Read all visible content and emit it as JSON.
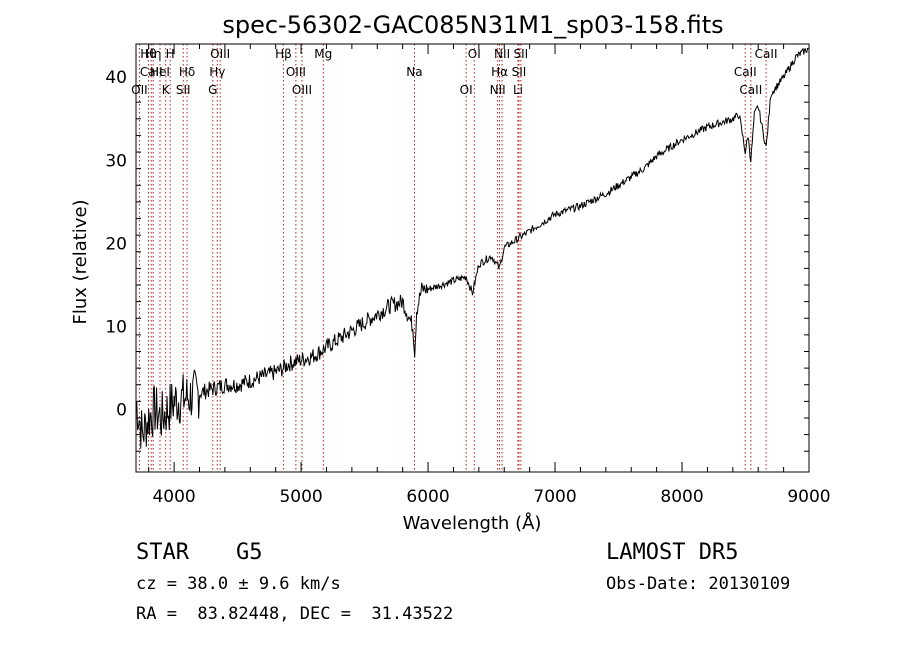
{
  "chart_data": {
    "type": "line",
    "title": "spec-56302-GAC085N31M1_sp03-158.fits",
    "xlabel": "Wavelength (Å)",
    "ylabel": "Flux (relative)",
    "xlim": [
      3700,
      9000
    ],
    "ylim": [
      -7.5,
      44
    ],
    "x_ticks": [
      4000,
      5000,
      6000,
      7000,
      8000,
      9000
    ],
    "y_ticks": [
      0,
      10,
      20,
      30,
      40
    ],
    "grid": false,
    "series": [
      {
        "x": [
          3700,
          3750,
          3800,
          3850,
          3900,
          3950,
          4000,
          4100,
          4200,
          4300,
          4400,
          4500,
          4600,
          4700,
          4800,
          4860,
          4900,
          5000,
          5100,
          5200,
          5300,
          5400,
          5500,
          5600,
          5700,
          5800,
          5880,
          5895,
          5910,
          5950,
          6000,
          6100,
          6200,
          6300,
          6350,
          6400,
          6500,
          6562,
          6600,
          6700,
          6800,
          6900,
          7000,
          7200,
          7400,
          7500,
          7600,
          7700,
          7800,
          8000,
          8200,
          8300,
          8400,
          8450,
          8498,
          8520,
          8542,
          8570,
          8600,
          8662,
          8700,
          8800,
          8900,
          9000
        ],
        "y": [
          1,
          -3,
          -1,
          0,
          -1,
          0,
          1,
          1.5,
          2,
          2.5,
          3,
          3,
          3.5,
          4,
          4.5,
          5,
          5.5,
          6,
          6.5,
          7.5,
          8.5,
          9.5,
          10.5,
          11.5,
          12.5,
          13,
          10,
          7,
          12,
          14.5,
          14.5,
          15,
          15.5,
          16,
          14,
          17.5,
          18.5,
          17,
          19.5,
          20.5,
          21.5,
          22.5,
          23.5,
          24.5,
          26,
          27,
          28,
          29,
          30.5,
          32.5,
          34,
          34.5,
          35,
          35.5,
          31,
          33,
          30,
          35.5,
          36.5,
          31.5,
          38,
          40,
          42.5,
          43.5
        ]
      }
    ],
    "line_markers": [
      {
        "label": "Hθ",
        "x": 3798
      },
      {
        "label": "CaII",
        "x": 3820
      },
      {
        "label": "OII",
        "x": 3727
      },
      {
        "label": "Hη",
        "x": 3835
      },
      {
        "label": "HeI",
        "x": 3889
      },
      {
        "label": "K",
        "x": 3934
      },
      {
        "label": "H",
        "x": 3969
      },
      {
        "label": "Hδ",
        "x": 4102
      },
      {
        "label": "SII",
        "x": 4072
      },
      {
        "label": "OIII",
        "x": 4363
      },
      {
        "label": "Hγ",
        "x": 4340
      },
      {
        "label": "G",
        "x": 4305
      },
      {
        "label": "Hβ",
        "x": 4861
      },
      {
        "label": "OIII",
        "x": 4959
      },
      {
        "label": "OIII",
        "x": 5007
      },
      {
        "label": "Mg",
        "x": 5175
      },
      {
        "label": "Na",
        "x": 5893
      },
      {
        "label": "OI",
        "x": 6300
      },
      {
        "label": "OI",
        "x": 6364
      },
      {
        "label": "Hα",
        "x": 6563
      },
      {
        "label": "NII",
        "x": 6548
      },
      {
        "label": "NII",
        "x": 6583
      },
      {
        "label": "SII",
        "x": 6716
      },
      {
        "label": "Li",
        "x": 6708
      },
      {
        "label": "SII",
        "x": 6731
      },
      {
        "label": "CaII",
        "x": 8498
      },
      {
        "label": "CaII",
        "x": 8542
      },
      {
        "label": "CaII",
        "x": 8662
      }
    ]
  },
  "info": {
    "class": "STAR",
    "subclass": "G5",
    "survey": "LAMOST DR5",
    "cz": "cz = 38.0 ± 9.6 km/s",
    "obs_date": "Obs-Date: 20130109",
    "coords": "RA =  83.82448, DEC =  31.43522"
  },
  "colors": {
    "spectrum": "#000000",
    "marker_line": "#b22222",
    "axes": "#000000"
  }
}
